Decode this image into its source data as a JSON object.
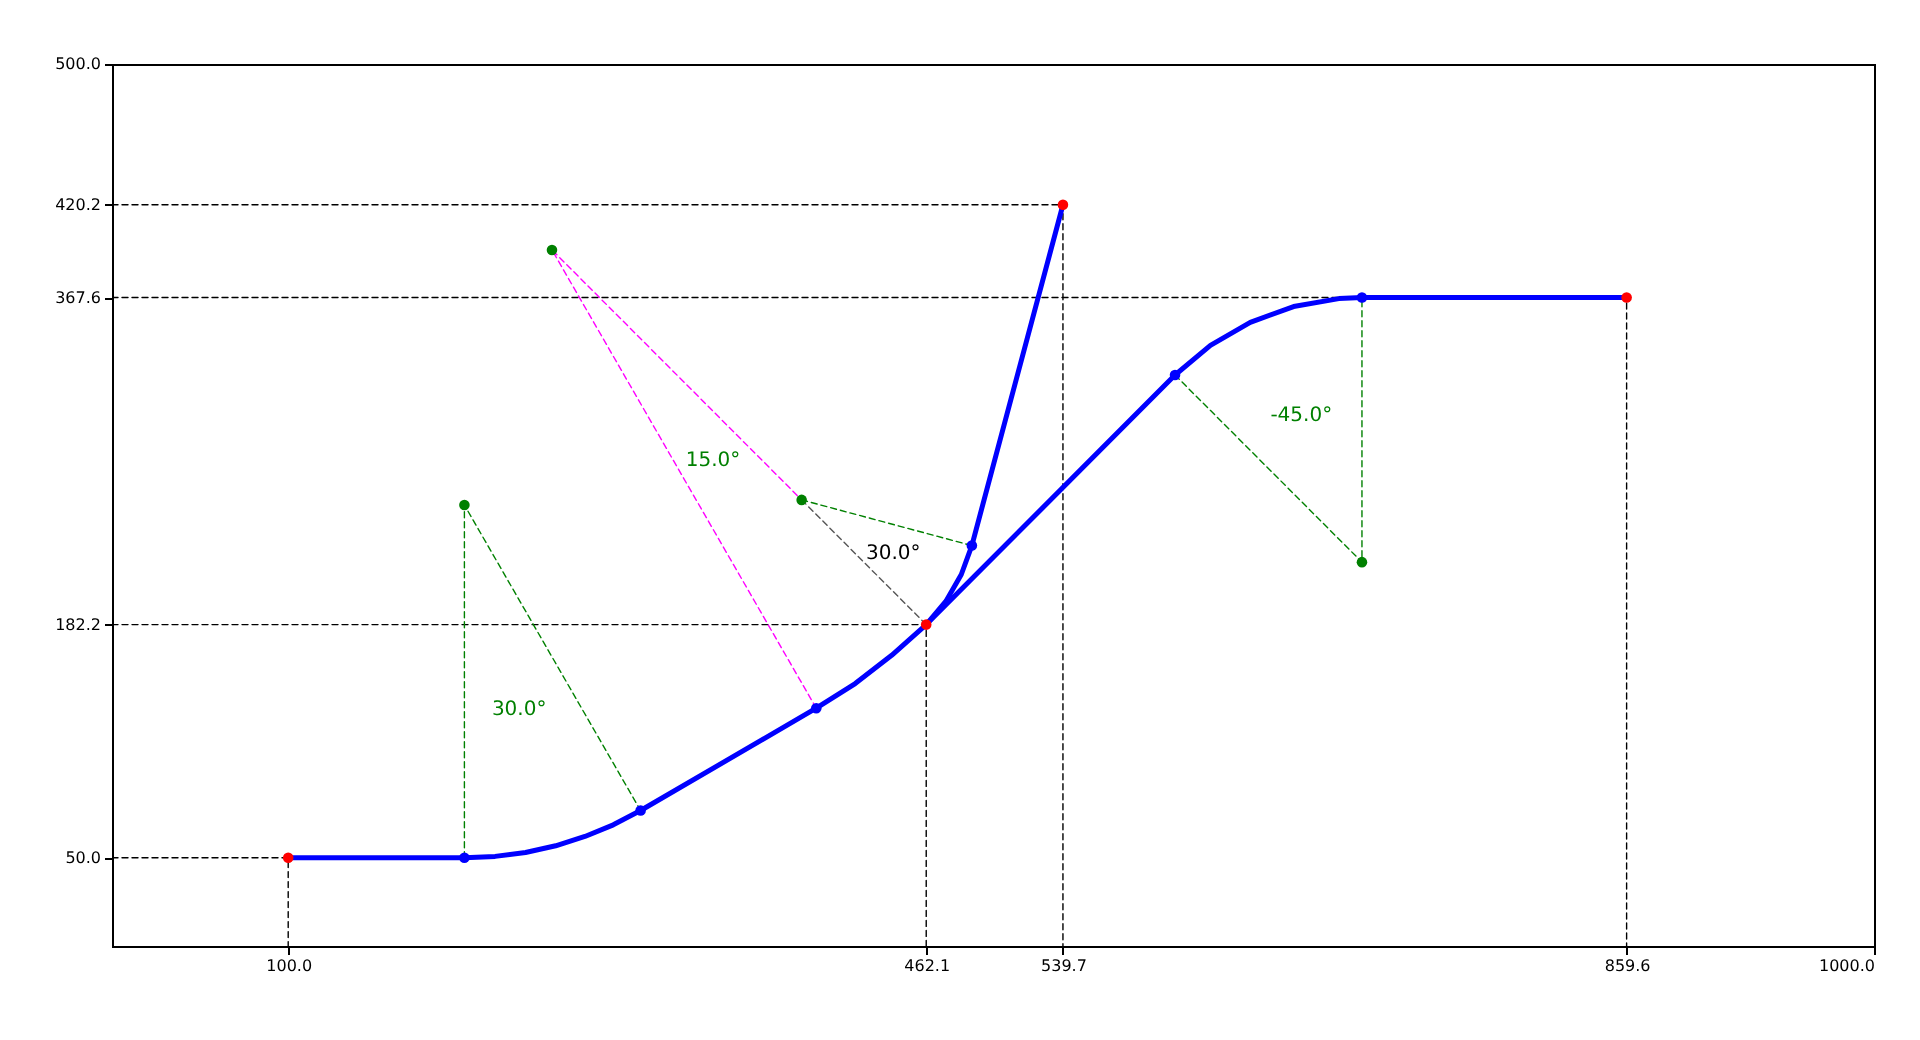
{
  "chart_data": {
    "type": "line",
    "xlim": [
      0,
      1000
    ],
    "ylim": [
      0,
      500
    ],
    "xticks": [
      {
        "value": 100,
        "label": "100.0"
      },
      {
        "value": 462.1,
        "label": "462.1"
      },
      {
        "value": 539.7,
        "label": "539.7"
      },
      {
        "value": 859.6,
        "label": "859.6"
      },
      {
        "value": 1000,
        "label": "1000.0"
      }
    ],
    "yticks": [
      {
        "value": 50,
        "label": "50.0"
      },
      {
        "value": 182.2,
        "label": "182.2"
      },
      {
        "value": 367.6,
        "label": "367.6"
      },
      {
        "value": 420.2,
        "label": "420.2"
      },
      {
        "value": 500,
        "label": "500.0"
      }
    ],
    "grid": false,
    "series": [
      {
        "type": "line",
        "color": "#000000",
        "line_style": "dashed",
        "x": [
          0,
          100,
          100
        ],
        "values": [
          50,
          50,
          0
        ]
      },
      {
        "type": "line",
        "color": "#000000",
        "line_style": "dashed",
        "x": [
          0,
          462.1,
          462.1
        ],
        "values": [
          182.2,
          182.2,
          0
        ]
      },
      {
        "type": "line",
        "color": "#000000",
        "line_style": "dashed",
        "x": [
          0,
          539.7,
          539.7
        ],
        "values": [
          420.2,
          420.2,
          0
        ]
      },
      {
        "type": "line",
        "color": "#000000",
        "line_style": "dashed",
        "x": [
          0,
          859.6,
          859.6
        ],
        "values": [
          367.6,
          367.6,
          0
        ]
      },
      {
        "type": "line",
        "color": "#008000",
        "line_style": "dashed",
        "x": [
          200,
          200,
          300
        ],
        "values": [
          50,
          250,
          76.8
        ]
      },
      {
        "type": "line",
        "color": "#ff00ff",
        "line_style": "dashed",
        "x": [
          399.7,
          249.7,
          391.4
        ],
        "values": [
          134.8,
          394.6,
          252.9
        ]
      },
      {
        "type": "line",
        "color": "#555555",
        "line_style": "dashed",
        "x": [
          391.4,
          462.1
        ],
        "values": [
          252.9,
          182.2
        ]
      },
      {
        "type": "line",
        "color": "#008000",
        "line_style": "dashed",
        "x": [
          391.4,
          488.0
        ],
        "values": [
          252.9,
          227.0
        ]
      },
      {
        "type": "line",
        "color": "#008000",
        "line_style": "dashed",
        "x": [
          603.3,
          709.4,
          709.4
        ],
        "values": [
          323.7,
          217.6,
          367.6
        ]
      },
      {
        "type": "line",
        "color": "#0000ff",
        "line_style": "solid",
        "x": [
          100,
          200,
          217.4,
          234.7,
          251.8,
          268.4,
          284.5,
          300,
          399.7,
          421.8,
          442.5,
          462.1,
          603.3,
          623.4,
          646.0,
          670.6,
          696.3,
          709.4,
          859.6
        ],
        "values": [
          50,
          50,
          50.8,
          53.0,
          56.8,
          62.1,
          68.7,
          76.8,
          134.8,
          148.8,
          164.8,
          182.2,
          323.7,
          340.5,
          353.5,
          362.5,
          367.0,
          367.6,
          367.6
        ]
      },
      {
        "type": "line",
        "color": "#0000ff",
        "line_style": "solid",
        "x": [
          462.1,
          473.3,
          482.0,
          488.0,
          539.7
        ],
        "values": [
          182.2,
          195.5,
          210.6,
          227.0,
          420.2
        ]
      },
      {
        "type": "scatter",
        "color": "#0000ff",
        "marker": "circle",
        "x": [
          200,
          300,
          399.7,
          603.3,
          709.4,
          488.0
        ],
        "values": [
          50,
          76.8,
          134.8,
          323.7,
          367.6,
          227.0
        ]
      },
      {
        "type": "scatter",
        "color": "#ff0000",
        "marker": "circle",
        "x": [
          100,
          462.1,
          539.7,
          859.6
        ],
        "values": [
          50,
          182.2,
          420.2,
          367.6
        ]
      },
      {
        "type": "scatter",
        "color": "#008000",
        "marker": "circle",
        "x": [
          200,
          249.7,
          391.4,
          709.4
        ],
        "values": [
          250,
          394.6,
          252.9,
          217.6
        ]
      }
    ],
    "annotations": [
      "30.0°",
      "15.0°",
      "30.0°",
      "-45.0°"
    ]
  }
}
